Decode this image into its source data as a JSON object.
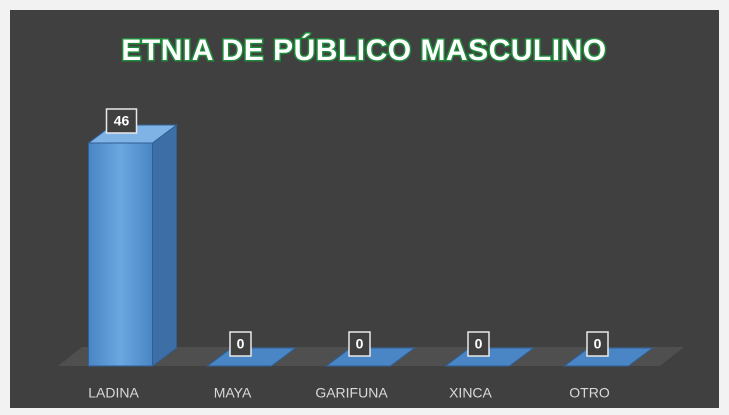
{
  "chart_data": {
    "type": "bar3d",
    "title": "ETNIA DE PÚBLICO MASCULINO",
    "categories": [
      "LADINA",
      "MAYA",
      "GARIFUNA",
      "XINCA",
      "OTRO"
    ],
    "values": [
      46,
      0,
      0,
      0,
      0
    ],
    "color": "#5b9bd5"
  }
}
